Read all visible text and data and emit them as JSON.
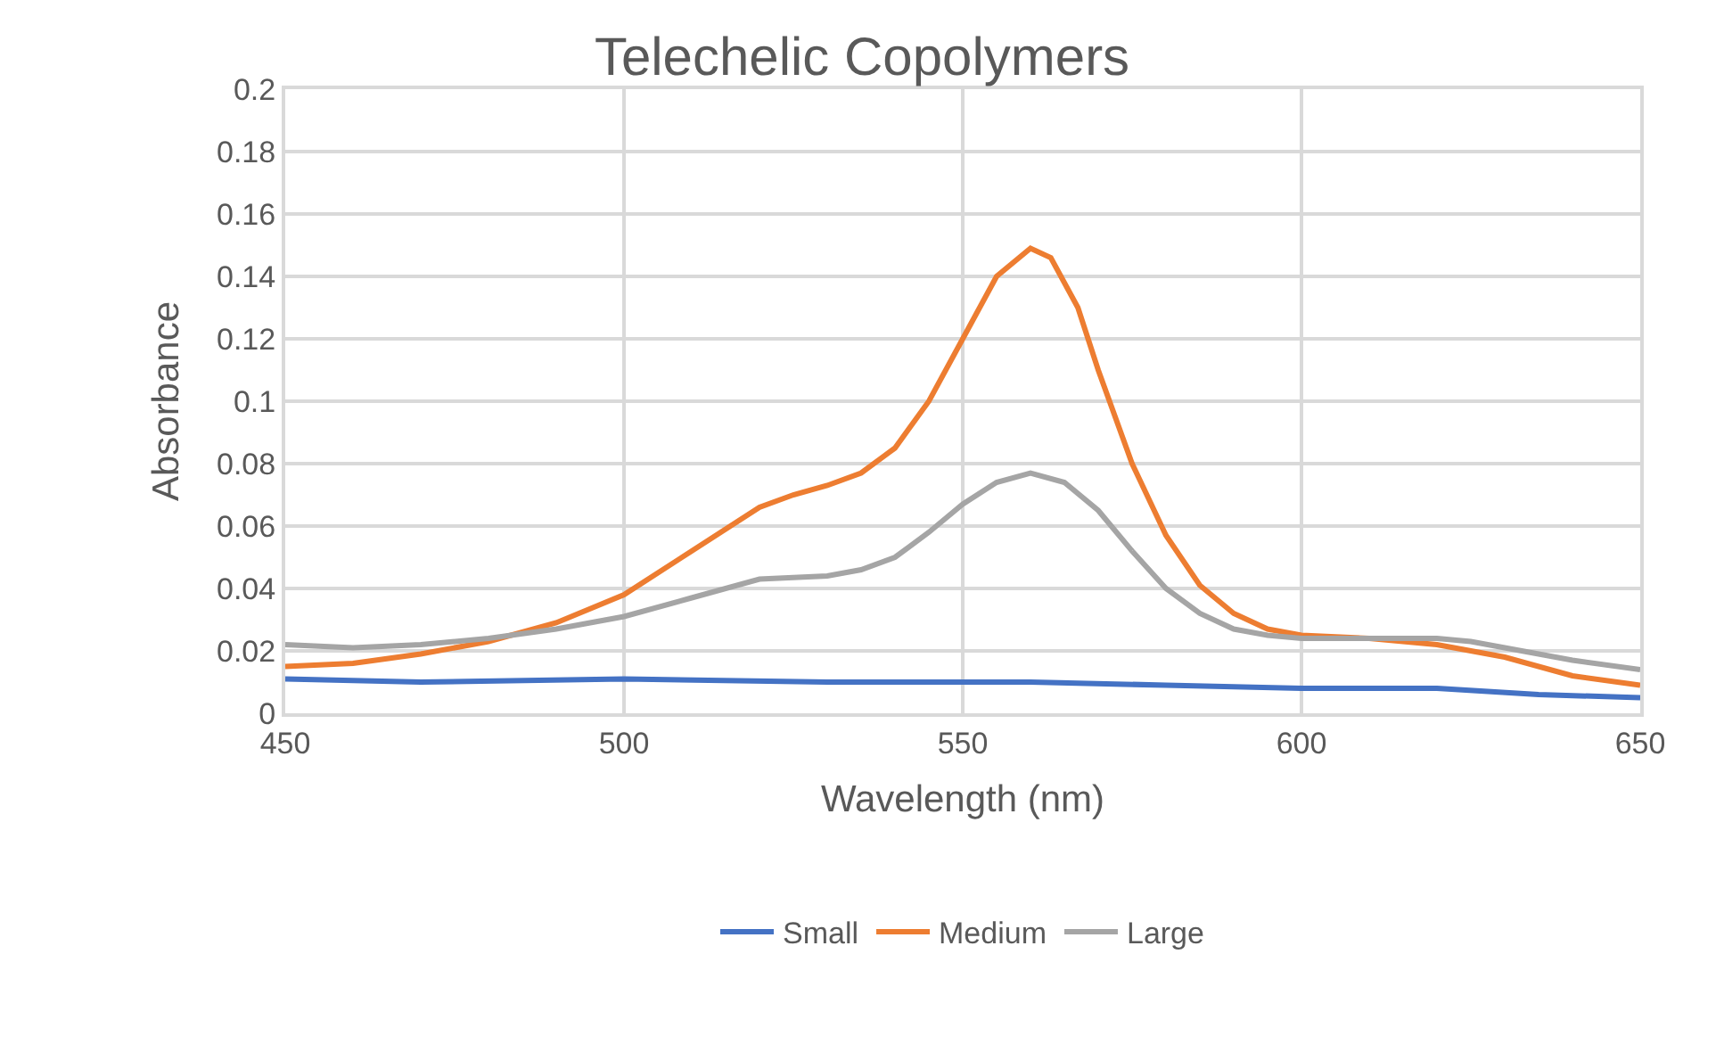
{
  "chart_data": {
    "type": "line",
    "title": "Telechelic Copolymers",
    "xlabel": "Wavelength (nm)",
    "ylabel": "Absorbance",
    "xlim": [
      450,
      650
    ],
    "xticks": [
      450,
      500,
      550,
      600,
      650
    ],
    "ylim": [
      0,
      0.2
    ],
    "yticks": [
      0,
      0.02,
      0.04,
      0.06,
      0.08,
      0.1,
      0.12,
      0.14,
      0.16,
      0.18,
      0.2
    ],
    "grid": true,
    "legend": "bottom",
    "marker": "none",
    "line_style": "solid",
    "series": [
      {
        "name": "Small",
        "color": "#4472c4",
        "x": [
          450,
          470,
          500,
          530,
          560,
          580,
          600,
          620,
          635,
          650
        ],
        "values": [
          0.011,
          0.01,
          0.011,
          0.01,
          0.01,
          0.009,
          0.008,
          0.008,
          0.006,
          0.005
        ]
      },
      {
        "name": "Medium",
        "color": "#ed7d31",
        "x": [
          450,
          460,
          470,
          480,
          490,
          500,
          510,
          520,
          525,
          530,
          535,
          540,
          545,
          550,
          555,
          560,
          563,
          567,
          570,
          575,
          580,
          585,
          590,
          595,
          600,
          610,
          620,
          630,
          640,
          650
        ],
        "values": [
          0.015,
          0.016,
          0.019,
          0.023,
          0.029,
          0.038,
          0.052,
          0.066,
          0.07,
          0.073,
          0.077,
          0.085,
          0.1,
          0.12,
          0.14,
          0.149,
          0.146,
          0.13,
          0.11,
          0.08,
          0.057,
          0.041,
          0.032,
          0.027,
          0.025,
          0.024,
          0.022,
          0.018,
          0.012,
          0.009
        ]
      },
      {
        "name": "Large",
        "color": "#a5a5a5",
        "x": [
          450,
          460,
          470,
          480,
          490,
          500,
          510,
          520,
          530,
          535,
          540,
          545,
          550,
          555,
          560,
          565,
          570,
          575,
          580,
          585,
          590,
          595,
          600,
          610,
          620,
          625,
          630,
          640,
          650
        ],
        "values": [
          0.022,
          0.021,
          0.022,
          0.024,
          0.027,
          0.031,
          0.037,
          0.043,
          0.044,
          0.046,
          0.05,
          0.058,
          0.067,
          0.074,
          0.077,
          0.074,
          0.065,
          0.052,
          0.04,
          0.032,
          0.027,
          0.025,
          0.024,
          0.024,
          0.024,
          0.023,
          0.021,
          0.017,
          0.014
        ]
      }
    ]
  }
}
